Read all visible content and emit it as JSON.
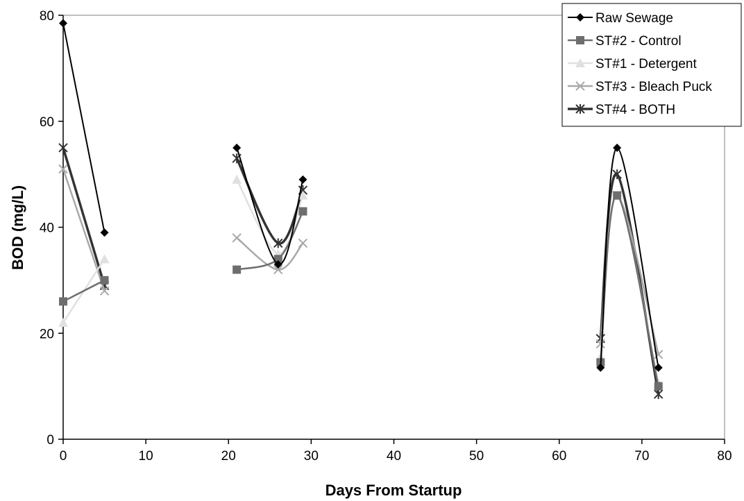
{
  "chart_data": {
    "type": "line",
    "xlabel": "Days From Startup",
    "ylabel": "BOD (mg/L)",
    "xlim": [
      0,
      80
    ],
    "ylim": [
      0,
      80
    ],
    "xticks": [
      0,
      10,
      20,
      30,
      40,
      50,
      60,
      70,
      80
    ],
    "yticks": [
      0,
      20,
      40,
      60,
      80
    ],
    "grid": false,
    "legend_position": "top-right",
    "series": [
      {
        "name": "Raw Sewage",
        "color": "#000000",
        "marker": "diamond",
        "segments": [
          [
            [
              0,
              78.5
            ],
            [
              5,
              39
            ]
          ],
          [
            [
              21,
              55
            ],
            [
              26,
              33
            ],
            [
              29,
              49
            ]
          ],
          [
            [
              65,
              13.5
            ],
            [
              67,
              55
            ],
            [
              72,
              13.5
            ]
          ]
        ]
      },
      {
        "name": "ST#2 - Control",
        "color": "#6e6e6e",
        "marker": "square",
        "segments": [
          [
            [
              0,
              26
            ],
            [
              5,
              30
            ]
          ],
          [
            [
              21,
              32
            ],
            [
              26,
              34
            ],
            [
              29,
              43
            ]
          ],
          [
            [
              65,
              14.5
            ],
            [
              67,
              46
            ],
            [
              72,
              10
            ]
          ]
        ]
      },
      {
        "name": "ST#1 - Detergent",
        "color": "#e0e0e0",
        "marker": "triangle",
        "segments": [
          [
            [
              0,
              22
            ],
            [
              5,
              34
            ]
          ],
          [
            [
              21,
              49
            ],
            [
              26,
              35
            ],
            [
              29,
              46
            ]
          ],
          [
            [
              65,
              15.5
            ],
            [
              67,
              46
            ],
            [
              72,
              10.5
            ]
          ]
        ]
      },
      {
        "name": "ST#3 - Bleach Puck",
        "color": "#a8a8a8",
        "marker": "x",
        "segments": [
          [
            [
              0,
              51
            ],
            [
              5,
              28
            ]
          ],
          [
            [
              21,
              38
            ],
            [
              26,
              32
            ],
            [
              29,
              37
            ]
          ],
          [
            [
              65,
              18
            ],
            [
              67,
              46
            ],
            [
              72,
              16
            ]
          ]
        ]
      },
      {
        "name": "ST#4 - BOTH",
        "color": "#333333",
        "marker": "star",
        "segments": [
          [
            [
              0,
              55
            ],
            [
              5,
              29
            ]
          ],
          [
            [
              21,
              53
            ],
            [
              26,
              37
            ],
            [
              29,
              47
            ]
          ],
          [
            [
              65,
              19
            ],
            [
              67,
              50
            ],
            [
              72,
              8.5
            ]
          ]
        ]
      }
    ]
  }
}
